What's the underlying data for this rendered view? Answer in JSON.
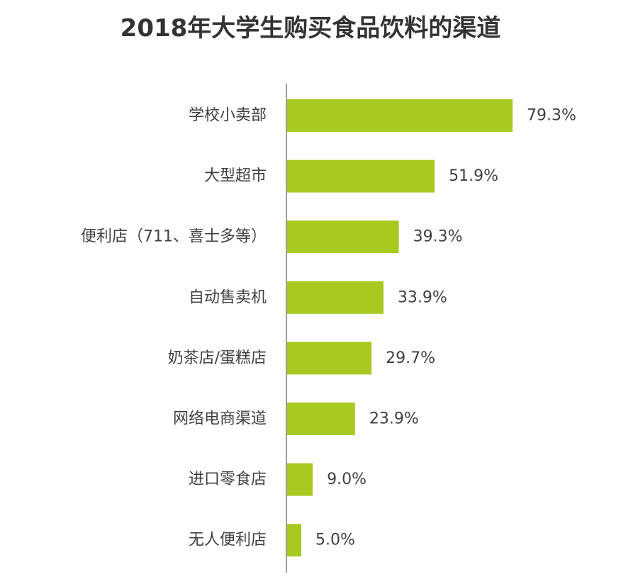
{
  "chart_data": {
    "type": "bar",
    "orientation": "horizontal",
    "title": "2018年大学生购买食品饮料的渠道",
    "xlabel": "",
    "ylabel": "",
    "xlim": [
      0,
      100
    ],
    "grid": false,
    "unit": "%",
    "categories": [
      "学校小卖部",
      "大型超市",
      "便利店（711、喜士多等）",
      "自动售卖机",
      "奶茶店/蛋糕店",
      "网络电商渠道",
      "进口零食店",
      "无人便利店"
    ],
    "values": [
      79.3,
      51.9,
      39.3,
      33.9,
      29.7,
      23.9,
      9.0,
      5.0
    ],
    "value_labels": [
      "79.3%",
      "51.9%",
      "39.3%",
      "33.9%",
      "29.7%",
      "23.9%",
      "9.0%",
      "5.0%"
    ],
    "bar_color": "#a8c920",
    "axis_color": "#7f7f7f",
    "text_color": "#404040",
    "title_color": "#333333"
  }
}
